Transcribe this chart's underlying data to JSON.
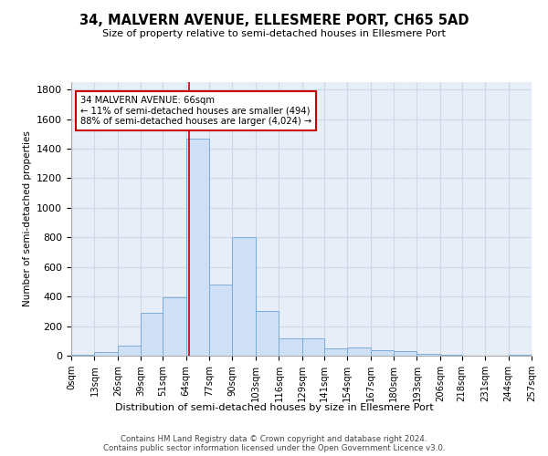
{
  "title": "34, MALVERN AVENUE, ELLESMERE PORT, CH65 5AD",
  "subtitle": "Size of property relative to semi-detached houses in Ellesmere Port",
  "xlabel": "Distribution of semi-detached houses by size in Ellesmere Port",
  "ylabel": "Number of semi-detached properties",
  "property_label": "34 MALVERN AVENUE: 66sqm",
  "pct_smaller": 11,
  "count_smaller": 494,
  "pct_larger": 88,
  "count_larger": 4024,
  "bin_edges": [
    0,
    13,
    26,
    39,
    51,
    64,
    77,
    90,
    103,
    116,
    129,
    141,
    154,
    167,
    180,
    193,
    206,
    218,
    231,
    244,
    257
  ],
  "bin_labels": [
    "0sqm",
    "13sqm",
    "26sqm",
    "39sqm",
    "51sqm",
    "64sqm",
    "77sqm",
    "90sqm",
    "103sqm",
    "116sqm",
    "129sqm",
    "141sqm",
    "154sqm",
    "167sqm",
    "180sqm",
    "193sqm",
    "206sqm",
    "218sqm",
    "231sqm",
    "244sqm",
    "257sqm"
  ],
  "bar_heights": [
    5,
    25,
    65,
    290,
    395,
    1470,
    480,
    800,
    305,
    115,
    115,
    50,
    55,
    35,
    30,
    10,
    5,
    0,
    0,
    5
  ],
  "bar_color": "#cfdff5",
  "bar_edge_color": "#7aaddc",
  "vline_x": 66,
  "vline_color": "#cc0000",
  "grid_color": "#d0d8e8",
  "ylim": [
    0,
    1850
  ],
  "yticks": [
    0,
    200,
    400,
    600,
    800,
    1000,
    1200,
    1400,
    1600,
    1800
  ],
  "footer_line1": "Contains HM Land Registry data © Crown copyright and database right 2024.",
  "footer_line2": "Contains public sector information licensed under the Open Government Licence v3.0.",
  "bg_color": "#ffffff",
  "plot_bg_color": "#e8eef8"
}
